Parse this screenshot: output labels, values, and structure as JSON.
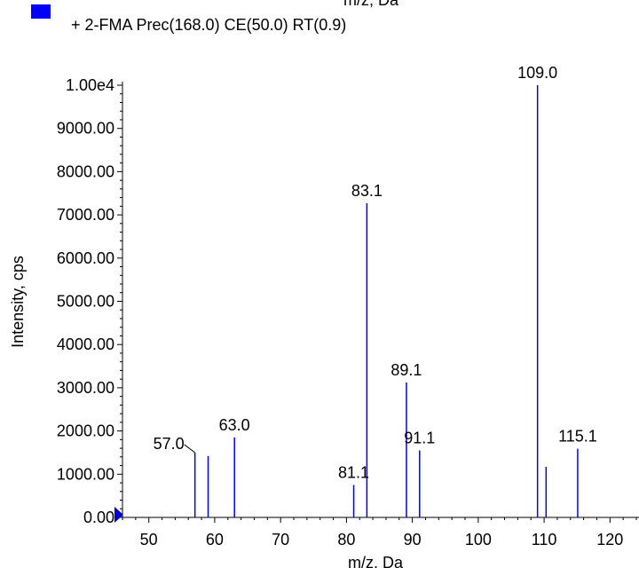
{
  "chart_data": {
    "type": "bar",
    "top_caption": "m/z, Da",
    "legend": {
      "placement": "top-left",
      "swatch_color": "#0000ff",
      "label": "+ 2-FMA Prec(168.0) CE(50.0) RT(0.9)"
    },
    "xlabel": "m/z, Da",
    "ylabel": "Intensity, cps",
    "xlim": [
      46,
      124
    ],
    "ylim": [
      0,
      10000
    ],
    "x_ticks": [
      "50",
      "60",
      "70",
      "80",
      "90",
      "100",
      "110",
      "120"
    ],
    "y_ticks": [
      "0.00",
      "1000.00",
      "2000.00",
      "3000.00",
      "4000.00",
      "5000.00",
      "6000.00",
      "7000.00",
      "8000.00",
      "9000.00",
      "1.00e4"
    ],
    "peak_color": "#0000ff",
    "peaks": [
      {
        "x": 57.0,
        "y": 1500,
        "label": "57.0"
      },
      {
        "x": 59.0,
        "y": 1420,
        "label": ""
      },
      {
        "x": 63.0,
        "y": 1850,
        "label": "63.0"
      },
      {
        "x": 81.1,
        "y": 750,
        "label": "81.1"
      },
      {
        "x": 83.1,
        "y": 7270,
        "label": "83.1"
      },
      {
        "x": 89.1,
        "y": 3120,
        "label": "89.1"
      },
      {
        "x": 91.1,
        "y": 1550,
        "label": "91.1"
      },
      {
        "x": 109.0,
        "y": 10000,
        "label": "109.0"
      },
      {
        "x": 110.3,
        "y": 1170,
        "label": ""
      },
      {
        "x": 115.1,
        "y": 1590,
        "label": "115.1"
      }
    ]
  }
}
